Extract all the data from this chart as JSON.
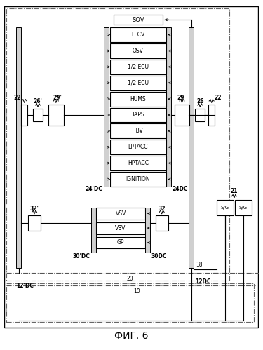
{
  "title": "ФИГ. 6",
  "fig_width": 3.75,
  "fig_height": 4.99,
  "bg_color": "#ffffff",
  "main_boxes_24dc": [
    "FFCV",
    "OSV",
    "1/2 ECU",
    "1/2 ECU",
    "HUMS",
    "TAPS",
    "TBV",
    "LPTACC",
    "HPTACC",
    "IGNITION"
  ],
  "sov_box": "SOV",
  "boxes_30dc": [
    "VSV",
    "VBV",
    "GP"
  ],
  "label_22p": "22'",
  "label_26p": "26'",
  "label_29p": "29'",
  "label_29": "29",
  "label_26": "26",
  "label_22": "22",
  "label_24pdc": "24'DC",
  "label_24dc": "24DC",
  "label_32p": "32'",
  "label_32": "32",
  "label_30pdc": "30'DC",
  "label_30dc": "30DC",
  "label_12pdc": "12'DC",
  "label_12dc": "12DC",
  "label_18": "18",
  "label_20": "20",
  "label_10": "10",
  "label_21": "21",
  "sg_label": "S/G"
}
